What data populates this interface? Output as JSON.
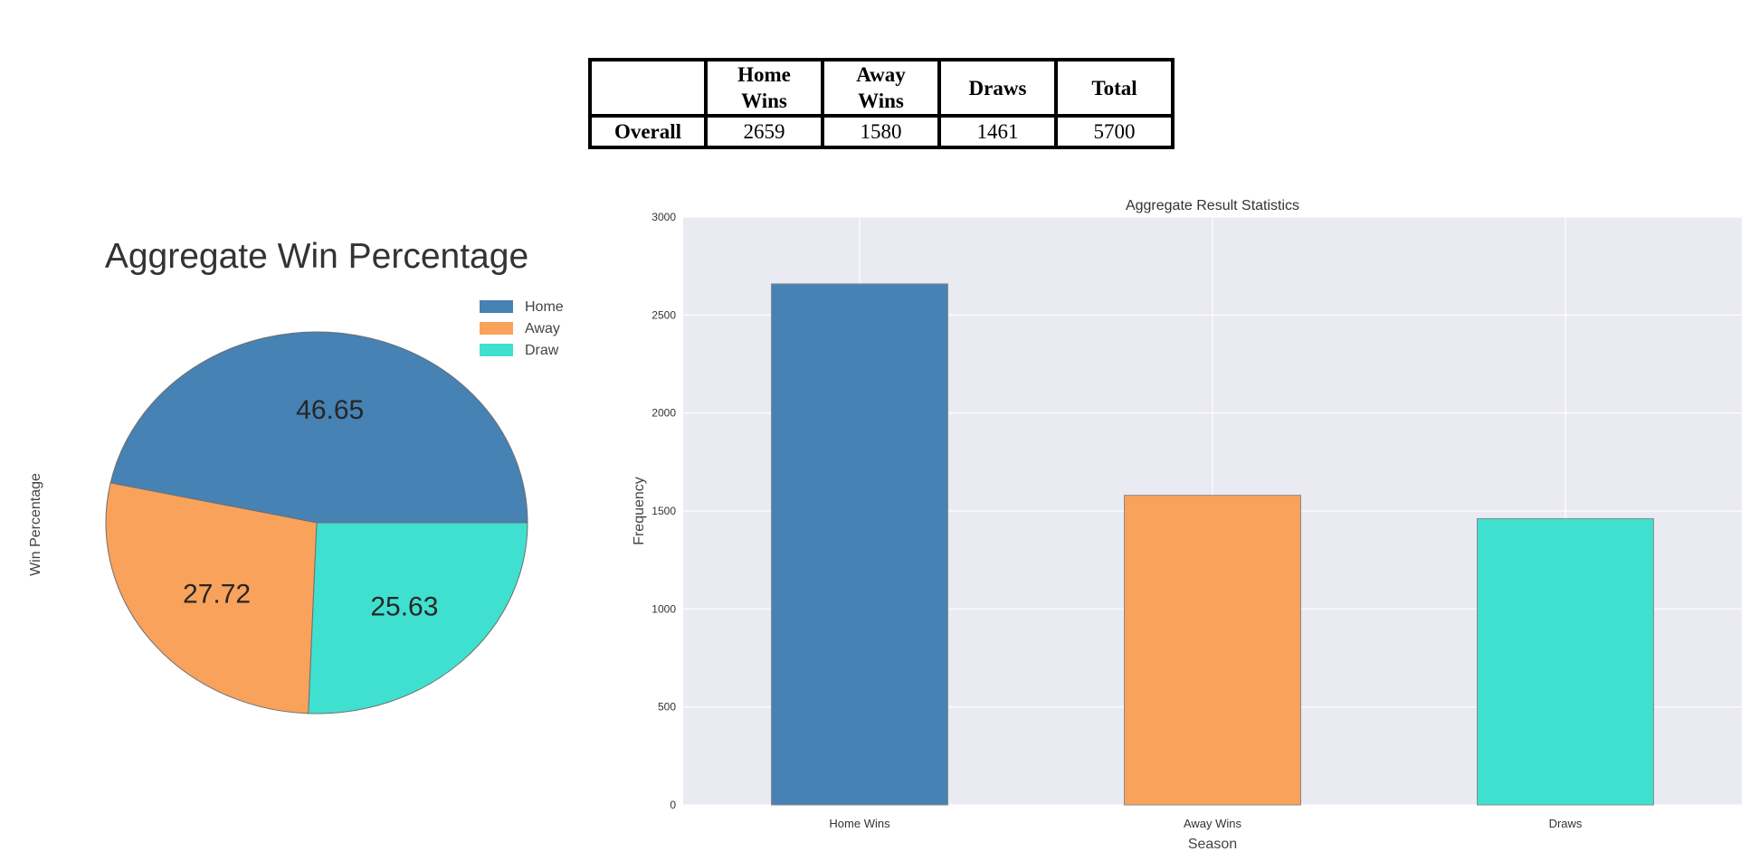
{
  "table": {
    "headers": [
      "",
      "Home\nWins",
      "Away\nWins",
      "Draws",
      "Total"
    ],
    "rows": [
      {
        "label": "Overall",
        "values": [
          "2659",
          "1580",
          "1461",
          "5700"
        ]
      }
    ]
  },
  "colors": {
    "home": "#4682b4",
    "away": "#f9a25c",
    "draw": "#40e0d0",
    "plot_bg": "#eaeaf2",
    "grid": "#ffffff"
  },
  "chart_data": [
    {
      "type": "pie",
      "title": "Aggregate Win Percentage",
      "ylabel": "Win Percentage",
      "labels": [
        "Home",
        "Away",
        "Draw"
      ],
      "values": [
        46.65,
        27.72,
        25.63
      ],
      "data_labels": [
        "46.65",
        "27.72",
        "25.63"
      ],
      "legend": {
        "position": "top-right",
        "entries": [
          "Home",
          "Away",
          "Draw"
        ]
      }
    },
    {
      "type": "bar",
      "title": "Aggregate Result Statistics",
      "xlabel": "Season",
      "ylabel": "Frequency",
      "categories": [
        "Home Wins",
        "Away Wins",
        "Draws"
      ],
      "values": [
        2659,
        1580,
        1461
      ],
      "ylim": [
        0,
        3000
      ],
      "yticks": [
        0,
        500,
        1000,
        1500,
        2000,
        2500,
        3000
      ],
      "grid": true
    }
  ]
}
